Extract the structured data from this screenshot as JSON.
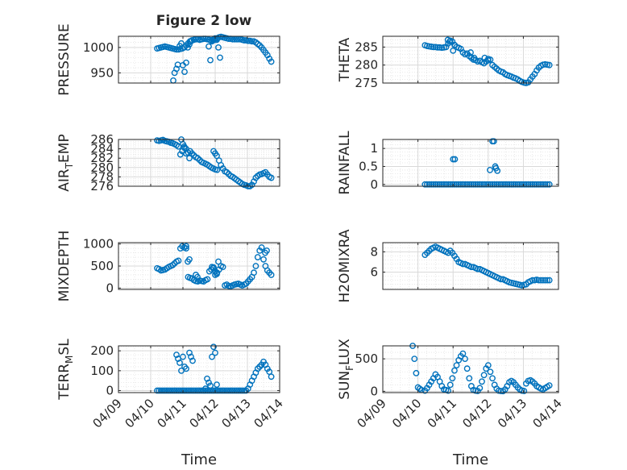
{
  "figure_title": "Figure 2 low",
  "x_common": {
    "xlabel": "Time",
    "xlim": [
      0,
      5
    ],
    "xticks": [
      0,
      1,
      2,
      3,
      4,
      5
    ],
    "xtick_labels": [
      "04/09",
      "04/10",
      "04/11",
      "04/12",
      "04/13",
      "04/14"
    ]
  },
  "colors": {
    "marker": "#0072BD",
    "grid": "#e3e3e3",
    "axis": "#262626"
  },
  "chart_data": [
    {
      "type": "scatter",
      "ylabel": "PRESSURE",
      "ylabel_sub": "",
      "ylim": [
        930,
        1022
      ],
      "yticks": [
        950,
        1000
      ],
      "x": [
        1.2,
        1.26,
        1.32,
        1.38,
        1.44,
        1.5,
        1.56,
        1.62,
        1.68,
        1.74,
        1.8,
        1.86,
        1.92,
        1.98,
        2.04,
        2.1,
        2.16,
        2.22,
        2.28,
        2.34,
        2.4,
        2.46,
        2.52,
        2.58,
        2.64,
        2.7,
        2.76,
        2.82,
        2.88,
        2.94,
        3.0,
        3.06,
        3.12,
        3.18,
        3.24,
        3.3,
        3.36,
        3.42,
        3.48,
        3.54,
        3.6,
        3.66,
        3.72,
        3.78,
        3.84,
        3.9,
        3.96,
        4.02,
        4.08,
        4.14,
        4.2,
        4.26,
        4.32,
        4.38,
        4.44,
        4.5,
        4.56,
        4.62,
        4.68,
        4.74,
        1.7,
        1.74,
        1.8,
        1.84,
        1.9,
        1.95,
        2.0,
        2.05,
        2.1,
        2.15,
        2.2,
        2.25,
        2.8,
        2.85,
        2.9,
        2.95,
        3.0,
        3.05,
        3.1,
        3.15
      ],
      "y": [
        998,
        999,
        1000,
        1001,
        1002,
        1001,
        1000,
        999,
        998,
        997,
        996,
        996,
        997,
        998,
        1000,
        1004,
        1008,
        1012,
        1014,
        1015,
        1016,
        1016,
        1015,
        1016,
        1017,
        1017,
        1016,
        1015,
        1014,
        1014,
        1015,
        1018,
        1020,
        1021,
        1020,
        1019,
        1018,
        1017,
        1017,
        1016,
        1016,
        1016,
        1016,
        1016,
        1015,
        1014,
        1014,
        1013,
        1013,
        1012,
        1012,
        1010,
        1007,
        1004,
        1000,
        995,
        990,
        985,
        978,
        972,
        935,
        950,
        958,
        966,
        1003,
        1008,
        965,
        952,
        970,
        1000,
        1006,
        1012,
        1002,
        975,
        1012,
        1016,
        1018,
        1015,
        1000,
        980
      ]
    },
    {
      "type": "scatter",
      "ylabel": "THETA",
      "ylabel_sub": "",
      "ylim": [
        275,
        288
      ],
      "yticks": [
        275,
        280,
        285
      ],
      "x": [
        1.2,
        1.26,
        1.32,
        1.38,
        1.44,
        1.5,
        1.56,
        1.62,
        1.68,
        1.74,
        1.8,
        1.86,
        1.92,
        1.98,
        2.04,
        2.1,
        2.16,
        2.22,
        2.28,
        2.34,
        2.4,
        2.46,
        2.52,
        2.58,
        2.64,
        2.7,
        2.76,
        2.82,
        2.88,
        2.94,
        3.0,
        3.06,
        3.12,
        3.18,
        3.24,
        3.3,
        3.36,
        3.42,
        3.48,
        3.54,
        3.6,
        3.66,
        3.72,
        3.78,
        3.84,
        3.9,
        3.96,
        4.02,
        4.08,
        4.14,
        4.2,
        4.26,
        4.32,
        4.38,
        4.44,
        4.5,
        4.56,
        4.62,
        4.68,
        4.74,
        1.85,
        1.9,
        2.0,
        2.05,
        2.5,
        2.6,
        2.9,
        3.0
      ],
      "y": [
        285.5,
        285.3,
        285.2,
        285.1,
        285.0,
        285.0,
        284.9,
        284.9,
        284.8,
        284.9,
        285.0,
        286.0,
        286.8,
        286.5,
        285.6,
        285.0,
        284.8,
        284.5,
        283.5,
        283.0,
        283.2,
        282.5,
        282.0,
        281.5,
        281.4,
        281.0,
        281.2,
        280.8,
        280.5,
        281.0,
        281.3,
        281.5,
        280.0,
        279.5,
        279.0,
        278.5,
        278.2,
        278.0,
        277.5,
        277.2,
        277.0,
        276.8,
        276.5,
        276.3,
        276.0,
        275.6,
        275.3,
        275.1,
        275.0,
        275.2,
        276.0,
        276.8,
        277.5,
        278.5,
        279.3,
        279.8,
        280.1,
        280.2,
        280.1,
        280.0,
        287.0,
        286.5,
        284.0,
        285.5,
        283.5,
        282.0,
        282.0,
        281.7
      ]
    },
    {
      "type": "scatter",
      "ylabel": "AIR",
      "ylabel_sub": "T",
      "ylabel_after": "EMP",
      "ylim": [
        276,
        286
      ],
      "yticks": [
        276,
        278,
        280,
        282,
        284,
        286
      ],
      "x": [
        1.2,
        1.26,
        1.32,
        1.38,
        1.44,
        1.5,
        1.56,
        1.62,
        1.68,
        1.74,
        1.8,
        1.86,
        1.92,
        1.98,
        2.04,
        2.1,
        2.16,
        2.22,
        2.28,
        2.34,
        2.4,
        2.46,
        2.52,
        2.58,
        2.64,
        2.7,
        2.76,
        2.82,
        2.88,
        2.94,
        3.0,
        3.06,
        3.12,
        3.18,
        3.24,
        3.3,
        3.36,
        3.42,
        3.48,
        3.54,
        3.6,
        3.66,
        3.72,
        3.78,
        3.84,
        3.9,
        3.96,
        4.02,
        4.08,
        4.14,
        4.2,
        4.26,
        4.32,
        4.38,
        4.44,
        4.5,
        4.56,
        4.62,
        4.68,
        4.74,
        1.95,
        2.0,
        2.05,
        2.1,
        2.2,
        2.95,
        3.0,
        3.05
      ],
      "y": [
        285.8,
        285.7,
        285.8,
        285.9,
        285.7,
        285.6,
        285.5,
        285.3,
        285.2,
        285.0,
        284.8,
        284.5,
        282.8,
        283.5,
        284.5,
        284.0,
        283.2,
        283.5,
        283.0,
        282.6,
        282.2,
        282.0,
        281.6,
        281.2,
        281.0,
        280.8,
        280.6,
        280.3,
        280.0,
        279.8,
        279.6,
        279.5,
        281.5,
        280.5,
        279.8,
        279.2,
        279.0,
        278.6,
        278.2,
        278.0,
        277.7,
        277.4,
        277.1,
        276.8,
        276.5,
        276.3,
        276.2,
        276.0,
        276.0,
        276.3,
        277.0,
        277.8,
        278.2,
        278.5,
        278.6,
        278.8,
        279.0,
        278.5,
        278.0,
        277.8,
        286.0,
        285.0,
        284.2,
        283.0,
        282.0,
        283.5,
        283.0,
        282.5
      ]
    },
    {
      "type": "scatter",
      "ylabel": "RAINFALL",
      "ylabel_sub": "",
      "ylim": [
        -0.05,
        1.25
      ],
      "yticks": [
        0,
        0.5,
        1
      ],
      "x": [
        1.2,
        1.26,
        1.32,
        1.38,
        1.44,
        1.5,
        1.56,
        1.62,
        1.68,
        1.74,
        1.8,
        1.86,
        1.92,
        1.98,
        2.04,
        2.1,
        2.16,
        2.22,
        2.28,
        2.34,
        2.4,
        2.46,
        2.52,
        2.58,
        2.64,
        2.7,
        2.76,
        2.82,
        2.88,
        2.94,
        3.0,
        3.06,
        3.12,
        3.18,
        3.24,
        3.3,
        3.36,
        3.42,
        3.48,
        3.54,
        3.6,
        3.66,
        3.72,
        3.78,
        3.84,
        3.9,
        3.96,
        4.02,
        4.08,
        4.14,
        4.2,
        4.26,
        4.32,
        4.38,
        4.44,
        4.5,
        4.56,
        4.62,
        4.68,
        4.74,
        2.0,
        2.05,
        3.05,
        3.12,
        3.16,
        3.2,
        3.22,
        3.26
      ],
      "y": [
        0,
        0,
        0,
        0,
        0,
        0,
        0,
        0,
        0,
        0,
        0,
        0,
        0,
        0,
        0,
        0,
        0,
        0,
        0,
        0,
        0,
        0,
        0,
        0,
        0,
        0,
        0,
        0,
        0,
        0,
        0,
        0,
        0,
        0,
        0,
        0,
        0,
        0,
        0,
        0,
        0,
        0,
        0,
        0,
        0,
        0,
        0,
        0,
        0,
        0,
        0,
        0,
        0,
        0,
        0,
        0,
        0,
        0,
        0,
        0,
        0.7,
        0.7,
        0.4,
        1.2,
        1.2,
        0.5,
        0.45,
        0.38
      ]
    },
    {
      "type": "scatter",
      "ylabel": "MIXDEPTH",
      "ylabel_sub": "",
      "ylim": [
        -30,
        1030
      ],
      "yticks": [
        0,
        500,
        1000
      ],
      "x": [
        1.2,
        1.26,
        1.32,
        1.38,
        1.44,
        1.5,
        1.56,
        1.62,
        1.68,
        1.74,
        1.8,
        1.86,
        1.92,
        1.98,
        2.04,
        2.1,
        2.16,
        2.22,
        2.28,
        2.34,
        2.4,
        2.46,
        2.52,
        2.58,
        2.64,
        2.7,
        2.76,
        2.82,
        2.88,
        2.94,
        3.0,
        3.06,
        3.12,
        3.18,
        3.24,
        3.3,
        3.36,
        3.42,
        3.48,
        3.54,
        3.6,
        3.66,
        3.72,
        3.78,
        3.84,
        3.9,
        3.96,
        4.02,
        4.08,
        4.14,
        4.2,
        4.26,
        4.32,
        4.38,
        4.44,
        4.5,
        4.56,
        4.62,
        4.68,
        4.74,
        2.1,
        2.15,
        2.2,
        2.4,
        2.45,
        2.9,
        2.95,
        3.0,
        3.05,
        3.1,
        4.55,
        4.6
      ],
      "y": [
        450,
        430,
        400,
        410,
        420,
        450,
        480,
        500,
        520,
        560,
        600,
        620,
        900,
        950,
        920,
        900,
        250,
        230,
        220,
        180,
        160,
        150,
        170,
        160,
        150,
        180,
        200,
        380,
        420,
        450,
        300,
        350,
        420,
        500,
        480,
        60,
        80,
        50,
        40,
        60,
        80,
        90,
        100,
        80,
        60,
        80,
        100,
        150,
        200,
        250,
        350,
        500,
        700,
        850,
        920,
        650,
        500,
        400,
        350,
        300,
        950,
        600,
        650,
        300,
        250,
        480,
        470,
        380,
        320,
        600,
        800,
        850
      ]
    },
    {
      "type": "scatter",
      "ylabel": "H2OMIXRA",
      "ylabel_sub": "",
      "ylim": [
        4.3,
        8.9
      ],
      "yticks": [
        6,
        8
      ],
      "x": [
        1.2,
        1.26,
        1.32,
        1.38,
        1.44,
        1.5,
        1.56,
        1.62,
        1.68,
        1.74,
        1.8,
        1.86,
        1.92,
        1.98,
        2.04,
        2.1,
        2.16,
        2.22,
        2.28,
        2.34,
        2.4,
        2.46,
        2.52,
        2.58,
        2.64,
        2.7,
        2.76,
        2.82,
        2.88,
        2.94,
        3.0,
        3.06,
        3.12,
        3.18,
        3.24,
        3.3,
        3.36,
        3.42,
        3.48,
        3.54,
        3.6,
        3.66,
        3.72,
        3.78,
        3.84,
        3.9,
        3.96,
        4.02,
        4.08,
        4.14,
        4.2,
        4.26,
        4.32,
        4.38,
        4.44,
        4.5,
        4.56,
        4.62,
        4.68,
        4.74
      ],
      "y": [
        7.7,
        7.9,
        8.1,
        8.3,
        8.4,
        8.5,
        8.4,
        8.3,
        8.2,
        8.1,
        8.0,
        7.9,
        8.1,
        7.9,
        7.6,
        7.3,
        7.0,
        6.9,
        6.8,
        6.8,
        6.7,
        6.6,
        6.5,
        6.5,
        6.4,
        6.3,
        6.3,
        6.2,
        6.1,
        6.0,
        5.9,
        5.8,
        5.7,
        5.6,
        5.5,
        5.4,
        5.3,
        5.3,
        5.2,
        5.1,
        5.0,
        4.95,
        4.9,
        4.85,
        4.8,
        4.75,
        4.7,
        4.75,
        4.8,
        5.0,
        5.1,
        5.2,
        5.2,
        5.25,
        5.2,
        5.2,
        5.2,
        5.2,
        5.2,
        5.2
      ]
    },
    {
      "type": "scatter",
      "ylabel": "TERR",
      "ylabel_sub": "M",
      "ylabel_after": "SL",
      "ylim": [
        -10,
        225
      ],
      "yticks": [
        0,
        100,
        200
      ],
      "x": [
        1.2,
        1.26,
        1.32,
        1.38,
        1.44,
        1.5,
        1.56,
        1.62,
        1.68,
        1.74,
        1.8,
        1.86,
        1.92,
        1.98,
        2.04,
        2.1,
        2.16,
        2.22,
        2.28,
        2.34,
        2.4,
        2.46,
        2.52,
        2.58,
        2.64,
        2.7,
        2.76,
        2.82,
        2.88,
        2.94,
        3.0,
        3.06,
        3.12,
        3.18,
        3.24,
        3.3,
        3.36,
        3.42,
        3.48,
        3.54,
        3.6,
        3.66,
        3.72,
        3.78,
        3.84,
        3.9,
        3.96,
        4.02,
        4.08,
        4.14,
        4.2,
        4.26,
        4.32,
        4.38,
        4.44,
        4.5,
        4.56,
        4.62,
        4.68,
        4.74,
        1.8,
        1.85,
        1.9,
        1.95,
        2.0,
        2.05,
        2.1,
        2.2,
        2.25,
        2.3,
        2.7,
        2.75,
        2.8,
        2.85,
        2.9,
        2.95,
        3.0,
        3.05
      ],
      "y": [
        0,
        0,
        0,
        0,
        0,
        0,
        0,
        0,
        0,
        0,
        0,
        0,
        0,
        0,
        0,
        0,
        0,
        0,
        0,
        0,
        0,
        0,
        0,
        0,
        0,
        0,
        0,
        0,
        0,
        0,
        0,
        0,
        0,
        0,
        0,
        0,
        0,
        0,
        0,
        0,
        0,
        0,
        0,
        0,
        0,
        0,
        0,
        10,
        30,
        50,
        70,
        90,
        110,
        120,
        130,
        145,
        130,
        110,
        95,
        70,
        180,
        160,
        140,
        100,
        170,
        120,
        110,
        190,
        170,
        150,
        10,
        60,
        40,
        25,
        170,
        220,
        190,
        30
      ]
    },
    {
      "type": "scatter",
      "ylabel": "SUN",
      "ylabel_sub": "F",
      "ylabel_after": "LUX",
      "ylim": [
        -20,
        700
      ],
      "yticks": [
        0,
        500
      ],
      "x": [
        1.2,
        1.26,
        1.32,
        1.38,
        1.44,
        1.5,
        1.56,
        1.62,
        1.68,
        1.74,
        1.8,
        1.86,
        1.92,
        1.98,
        2.04,
        2.1,
        2.16,
        2.22,
        2.28,
        2.34,
        2.4,
        2.46,
        2.52,
        2.58,
        2.64,
        2.7,
        2.76,
        2.82,
        2.88,
        2.94,
        3.0,
        3.06,
        3.12,
        3.18,
        3.24,
        3.3,
        3.36,
        3.42,
        3.48,
        3.54,
        3.6,
        3.66,
        3.72,
        3.78,
        3.84,
        3.9,
        3.96,
        4.02,
        4.08,
        4.14,
        4.2,
        4.26,
        4.32,
        4.38,
        4.44,
        4.5,
        4.56,
        4.62,
        4.68,
        4.74,
        0.85,
        0.9,
        0.95,
        1.0,
        1.05,
        1.1
      ],
      "y": [
        10,
        50,
        100,
        150,
        200,
        260,
        220,
        150,
        80,
        30,
        20,
        10,
        100,
        200,
        320,
        400,
        480,
        540,
        580,
        500,
        350,
        200,
        80,
        20,
        10,
        5,
        50,
        150,
        250,
        350,
        400,
        300,
        200,
        100,
        40,
        10,
        5,
        2,
        30,
        80,
        140,
        160,
        140,
        100,
        60,
        30,
        10,
        5,
        120,
        160,
        170,
        150,
        120,
        80,
        60,
        40,
        30,
        50,
        70,
        90,
        700,
        500,
        280,
        60,
        40,
        20
      ]
    }
  ]
}
